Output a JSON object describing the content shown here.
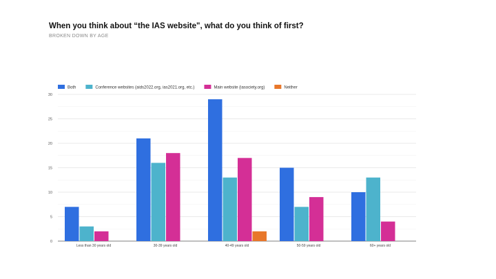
{
  "title": "When you think about “the IAS website\", what do you think of first?",
  "subtitle": "BROKEN DOWN BY AGE",
  "chart_data": {
    "type": "bar",
    "categories": [
      "Less than 30 years old",
      "30-39 years old",
      "40-49 years old",
      "50-59 years old",
      "60+ years old"
    ],
    "series": [
      {
        "name": "Both",
        "color": "#2f6fe0",
        "values": [
          7,
          21,
          29,
          15,
          10
        ]
      },
      {
        "name": "Conference websites (aids2022.org, ias2021.org, etc.)",
        "color": "#4db3cc",
        "values": [
          3,
          16,
          13,
          7,
          13
        ]
      },
      {
        "name": "Main website (iasociety.org)",
        "color": "#d42f96",
        "values": [
          2,
          18,
          17,
          9,
          4
        ]
      },
      {
        "name": "Neither",
        "color": "#e8772a",
        "values": [
          0,
          0,
          2,
          0,
          0
        ]
      }
    ],
    "ylim": [
      0,
      30
    ],
    "yticks": [
      0,
      5,
      10,
      15,
      20,
      25,
      30
    ],
    "grid": true,
    "legend": "top-left"
  }
}
